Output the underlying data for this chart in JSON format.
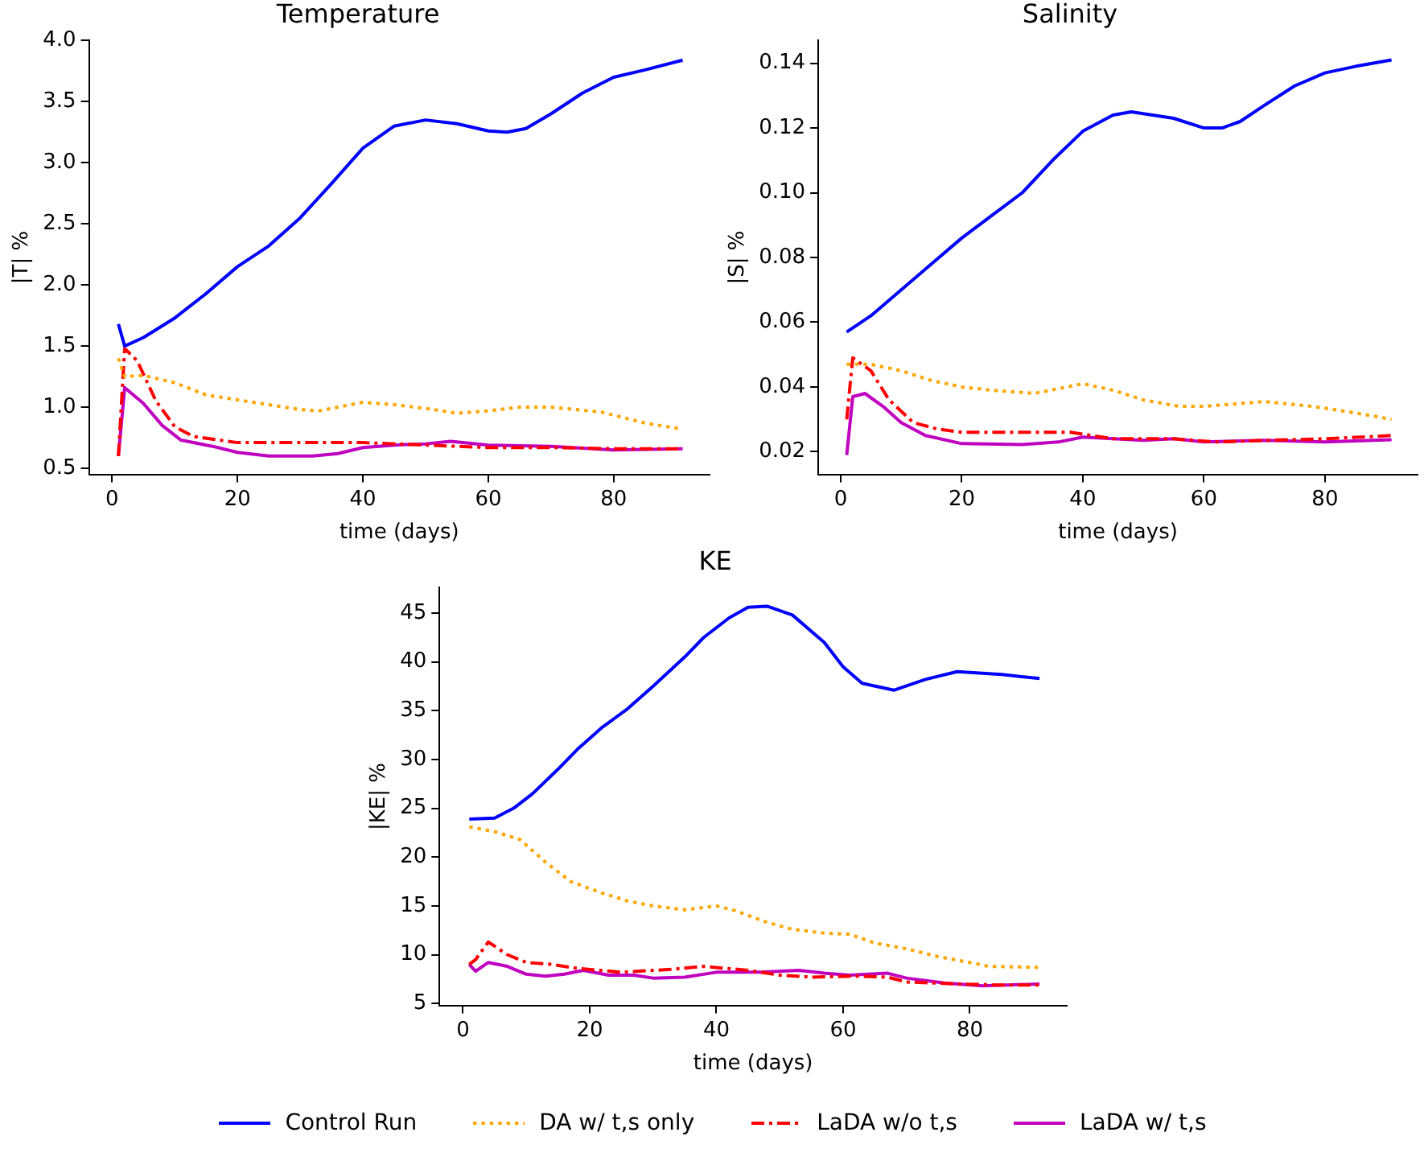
{
  "chart_data": [
    {
      "type": "line",
      "title": "Temperature",
      "xlabel": "time (days)",
      "ylabel": "|T| %",
      "xlim": [
        -3.7,
        95.3
      ],
      "ylim": [
        0.45,
        4.0
      ],
      "xticks": [
        0,
        20,
        40,
        60,
        80
      ],
      "yticks": [
        0.5,
        {
          "value": 1,
          "label": "1.0"
        },
        1.5,
        {
          "value": 2,
          "label": "2.0"
        },
        2.5,
        {
          "value": 3,
          "label": "3.0"
        },
        3.5,
        {
          "value": 4,
          "label": "4.0"
        }
      ],
      "grid": false,
      "legend": false,
      "series": [
        {
          "color": "#0000ff",
          "line_style": "solid",
          "x": [
            1,
            2,
            5,
            10,
            15,
            20,
            25,
            30,
            35,
            40,
            45,
            50,
            55,
            60,
            63,
            66,
            70,
            75,
            80,
            85,
            91
          ],
          "values": [
            1.68,
            1.5,
            1.57,
            1.73,
            1.93,
            2.15,
            2.32,
            2.55,
            2.83,
            3.12,
            3.3,
            3.35,
            3.32,
            3.26,
            3.25,
            3.28,
            3.4,
            3.57,
            3.7,
            3.76,
            3.84
          ]
        },
        {
          "color": "#ffa500",
          "line_style": "dotted",
          "x": [
            1,
            2,
            5,
            10,
            15,
            20,
            25,
            30,
            33,
            40,
            45,
            50,
            55,
            60,
            65,
            70,
            78,
            85,
            91
          ],
          "values": [
            1.4,
            1.25,
            1.26,
            1.2,
            1.1,
            1.06,
            1.02,
            0.98,
            0.97,
            1.04,
            1.02,
            0.99,
            0.95,
            0.97,
            1.0,
            1.0,
            0.96,
            0.87,
            0.82
          ]
        },
        {
          "color": "#ff0000",
          "line_style": "dashdot",
          "x": [
            1,
            2,
            4,
            7,
            10,
            13,
            20,
            30,
            40,
            50,
            60,
            70,
            80,
            91
          ],
          "values": [
            0.6,
            1.48,
            1.38,
            1.05,
            0.84,
            0.76,
            0.71,
            0.71,
            0.71,
            0.69,
            0.67,
            0.67,
            0.66,
            0.66
          ]
        },
        {
          "color": "#c000c0",
          "line_style": "solid",
          "x": [
            1,
            2,
            5,
            8,
            11,
            16,
            20,
            25,
            32,
            36,
            40,
            45,
            50,
            54,
            60,
            70,
            80,
            91
          ],
          "values": [
            0.6,
            1.16,
            1.03,
            0.85,
            0.73,
            0.68,
            0.63,
            0.6,
            0.6,
            0.62,
            0.67,
            0.69,
            0.7,
            0.72,
            0.69,
            0.68,
            0.65,
            0.66
          ]
        }
      ]
    },
    {
      "type": "line",
      "title": "Salinity",
      "xlabel": "time (days)",
      "ylabel": "|S| %",
      "xlim": [
        -3.7,
        95.3
      ],
      "ylim": [
        0.013,
        0.147
      ],
      "xticks": [
        0,
        20,
        40,
        60,
        80
      ],
      "yticks": [
        0.02,
        0.04,
        0.06,
        0.08,
        {
          "value": 0.1,
          "label": "0.10"
        },
        0.12,
        0.14
      ],
      "grid": false,
      "legend": false,
      "series": [
        {
          "color": "#0000ff",
          "line_style": "solid",
          "x": [
            1,
            5,
            10,
            15,
            20,
            25,
            30,
            35,
            40,
            45,
            48,
            55,
            60,
            63,
            66,
            70,
            75,
            80,
            85,
            91
          ],
          "values": [
            0.057,
            0.062,
            0.07,
            0.078,
            0.086,
            0.093,
            0.1,
            0.11,
            0.119,
            0.124,
            0.125,
            0.123,
            0.12,
            0.12,
            0.122,
            0.127,
            0.133,
            0.137,
            0.139,
            0.141
          ]
        },
        {
          "color": "#ffa500",
          "line_style": "dotted",
          "x": [
            1,
            5,
            10,
            15,
            20,
            25,
            32,
            40,
            45,
            50,
            56,
            60,
            70,
            78,
            85,
            91
          ],
          "values": [
            0.047,
            0.047,
            0.045,
            0.042,
            0.04,
            0.039,
            0.038,
            0.041,
            0.039,
            0.036,
            0.034,
            0.034,
            0.0355,
            0.034,
            0.032,
            0.03
          ]
        },
        {
          "color": "#ff0000",
          "line_style": "dashdot",
          "x": [
            1,
            2,
            5,
            8,
            12,
            16,
            20,
            30,
            38,
            45,
            55,
            62,
            70,
            80,
            91
          ],
          "values": [
            0.03,
            0.049,
            0.045,
            0.036,
            0.029,
            0.027,
            0.026,
            0.026,
            0.026,
            0.024,
            0.024,
            0.023,
            0.0235,
            0.024,
            0.025
          ]
        },
        {
          "color": "#c000c0",
          "line_style": "solid",
          "x": [
            1,
            2,
            4,
            7,
            10,
            14,
            20,
            30,
            36,
            40,
            50,
            55,
            60,
            70,
            80,
            91
          ],
          "values": [
            0.019,
            0.037,
            0.038,
            0.034,
            0.029,
            0.025,
            0.0225,
            0.0222,
            0.023,
            0.0245,
            0.0235,
            0.024,
            0.023,
            0.0235,
            0.023,
            0.0237
          ]
        }
      ]
    },
    {
      "type": "line",
      "title": "KE",
      "xlabel": "time (days)",
      "ylabel": "|KE| %",
      "xlim": [
        -3.7,
        95.3
      ],
      "ylim": [
        4.8,
        47.6
      ],
      "xticks": [
        0,
        20,
        40,
        60,
        80
      ],
      "yticks": [
        5,
        10,
        15,
        20,
        25,
        30,
        35,
        40,
        45
      ],
      "grid": false,
      "legend": "bottom",
      "series": [
        {
          "name": "Control Run",
          "color": "#0000ff",
          "line_style": "solid",
          "x": [
            1,
            5,
            8,
            11,
            15,
            18,
            22,
            26,
            30,
            35,
            38,
            42,
            45,
            48,
            52,
            57,
            60,
            63,
            68,
            73,
            78,
            85,
            91
          ],
          "values": [
            23.9,
            24,
            25,
            26.5,
            29,
            31,
            33.3,
            35.2,
            37.5,
            40.5,
            42.5,
            44.5,
            45.6,
            45.7,
            44.8,
            42,
            39.5,
            37.8,
            37.1,
            38.2,
            39,
            38.7,
            38.3
          ]
        },
        {
          "name": "DA w/ t,s only",
          "color": "#ffa500",
          "line_style": "dotted",
          "x": [
            1,
            5,
            9,
            13,
            17,
            22,
            26,
            30,
            35,
            40,
            43,
            48,
            52,
            57,
            61,
            65,
            70,
            75,
            80,
            83,
            91
          ],
          "values": [
            23.1,
            22.6,
            21.8,
            19.5,
            17.5,
            16.3,
            15.5,
            15,
            14.6,
            15,
            14.5,
            13.3,
            12.6,
            12.2,
            12.1,
            11.2,
            10.6,
            9.8,
            9.2,
            8.8,
            8.7
          ]
        },
        {
          "name": "LaDA w/o t,s",
          "color": "#ff0000",
          "line_style": "dashdot",
          "x": [
            1,
            2,
            4,
            7,
            10,
            14,
            18,
            25,
            33,
            38,
            45,
            50,
            55,
            62,
            67,
            70,
            78,
            84,
            91
          ],
          "values": [
            9,
            9.5,
            11.3,
            10,
            9.2,
            9,
            8.6,
            8.2,
            8.5,
            8.8,
            8.4,
            7.9,
            7.7,
            7.8,
            7.7,
            7.2,
            7,
            6.9,
            6.9
          ]
        },
        {
          "name": "LaDA w/ t,s",
          "color": "#c000c0",
          "line_style": "solid",
          "x": [
            1,
            2,
            4,
            7,
            10,
            13,
            16,
            19,
            23,
            27,
            30,
            35,
            40,
            47,
            53,
            57,
            61,
            67,
            70,
            76,
            82,
            91
          ],
          "values": [
            9,
            8.3,
            9.2,
            8.8,
            8,
            7.8,
            8,
            8.4,
            7.9,
            7.9,
            7.6,
            7.7,
            8.2,
            8.2,
            8.4,
            8.1,
            7.9,
            8.1,
            7.6,
            7.1,
            6.8,
            7
          ]
        }
      ]
    }
  ]
}
